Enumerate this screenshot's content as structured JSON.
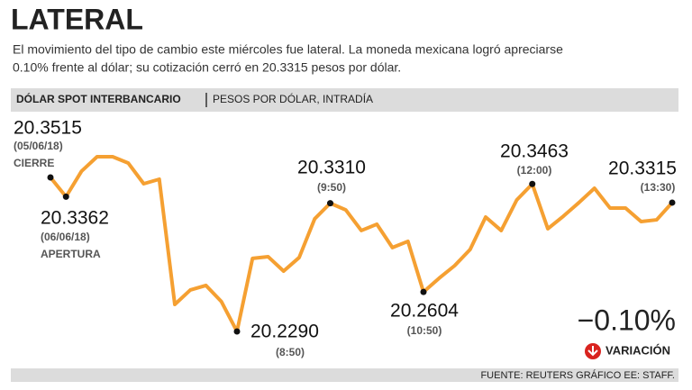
{
  "chart_data": {
    "type": "line",
    "title": "LATERAL",
    "subtitle": "El movimiento del tipo de cambio este miércoles fue lateral. La moneda mexicana logró apreciarse 0.10% frente al dólar; su cotización cerró en 20.3315 pesos por dólar.",
    "section_title": "DÓLAR SPOT INTERBANCARIO",
    "section_subtitle": "PESOS POR DÓLAR, INTRADÍA",
    "color": "#f5a032",
    "categories": [
      "(05/06/18)",
      "(06/06/18)",
      null,
      null,
      null,
      null,
      null,
      null,
      null,
      null,
      null,
      null,
      "(8:50)",
      null,
      null,
      null,
      null,
      null,
      "(9:50)",
      null,
      null,
      null,
      null,
      null,
      "(10:50)",
      null,
      null,
      null,
      null,
      null,
      null,
      "(12:00)",
      null,
      null,
      null,
      null,
      null,
      null,
      null,
      null,
      "(13:30)"
    ],
    "values": [
      20.3515,
      20.3362,
      20.3565,
      20.368,
      20.368,
      20.363,
      20.3465,
      20.3501,
      20.2505,
      20.262,
      20.2656,
      20.2527,
      20.229,
      20.2871,
      20.2885,
      20.277,
      20.2878,
      20.3186,
      20.331,
      20.3257,
      20.3093,
      20.3143,
      20.2957,
      20.3007,
      20.2604,
      20.2713,
      20.2813,
      20.2942,
      20.32,
      20.3093,
      20.3336,
      20.3463,
      20.3107,
      20.3207,
      20.3315,
      20.3429,
      20.3272,
      20.3272,
      20.3164,
      20.3178,
      20.3315
    ],
    "value_labels": [
      "20.3515",
      "20.3362",
      null,
      null,
      null,
      null,
      null,
      null,
      null,
      null,
      null,
      null,
      "20.2290",
      null,
      null,
      null,
      null,
      null,
      "20.3310",
      null,
      null,
      null,
      null,
      null,
      "20.2604",
      null,
      null,
      null,
      null,
      null,
      null,
      "20.3463",
      null,
      null,
      null,
      null,
      null,
      null,
      null,
      null,
      "20.3315"
    ],
    "annotations": [
      "CIERRE",
      "APERTURA"
    ],
    "change": "−0.10%",
    "change_label": "VARIACIÓN",
    "source": "FUENTE: REUTERS GRÁFICO EE: STAFF."
  }
}
